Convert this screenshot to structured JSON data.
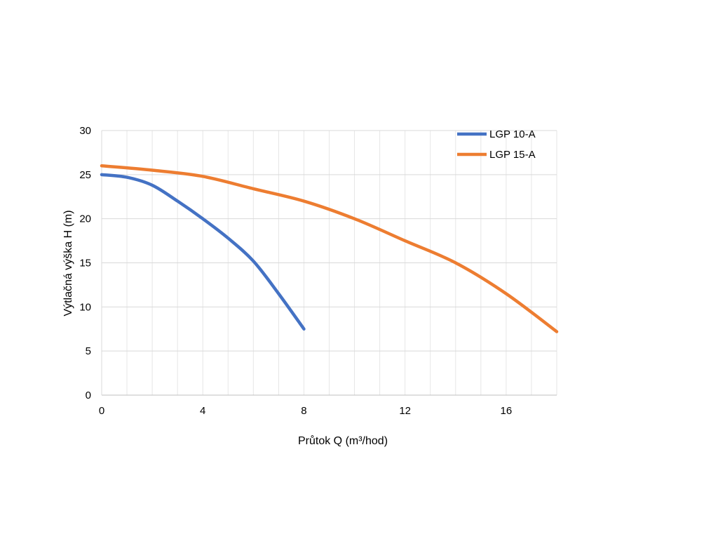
{
  "chart_data": {
    "type": "line",
    "title": "",
    "xlabel": "Průtok Q (m³/hod)",
    "ylabel": "Výtlačná výška H (m)",
    "xlim": [
      0,
      18
    ],
    "ylim": [
      0,
      30
    ],
    "x_ticks": [
      0,
      4,
      8,
      12,
      16
    ],
    "y_ticks": [
      0,
      5,
      10,
      15,
      20,
      25,
      30
    ],
    "x_minor_grid_step": 1,
    "y_major_grid_step": 5,
    "grid": true,
    "legend_position": "top-right",
    "series": [
      {
        "name": "LGP 10-A",
        "color": "#4472C4",
        "x": [
          0,
          1,
          2,
          3,
          4,
          5,
          6,
          7,
          8
        ],
        "y": [
          25,
          24.7,
          23.8,
          22,
          20,
          17.8,
          15.2,
          11.5,
          7.5
        ]
      },
      {
        "name": "LGP 15-A",
        "color": "#ED7D31",
        "x": [
          0,
          2,
          4,
          6,
          8,
          10,
          12,
          14,
          16,
          18
        ],
        "y": [
          26,
          25.5,
          24.8,
          23.4,
          22,
          20,
          17.5,
          15,
          11.5,
          7.2
        ]
      }
    ]
  }
}
